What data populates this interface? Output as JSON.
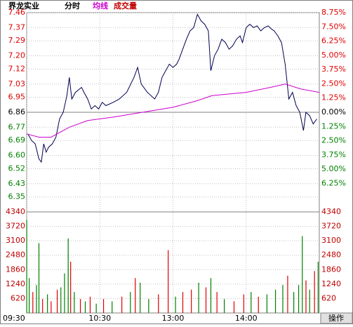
{
  "chart_data": [
    {
      "type": "line",
      "stock": "界龙实业",
      "mode": "分时",
      "avg_label": "均线",
      "volume_label": "成交量",
      "xlim": [
        0,
        240
      ],
      "xticks": [
        {
          "value": 0,
          "label": "09:30"
        },
        {
          "value": 60,
          "label": "10:30"
        },
        {
          "value": 120,
          "label": "13:00"
        },
        {
          "value": 180,
          "label": "14:00"
        }
      ],
      "ylim": [
        6.26,
        7.46
      ],
      "yticks": [
        7.46,
        7.37,
        7.29,
        {
          "value": 7.2,
          "label": "7.20"
        },
        7.12,
        7.03,
        6.95,
        6.86,
        6.77,
        6.69,
        {
          "value": 6.6,
          "label": "6.60"
        },
        6.52,
        6.43,
        6.35
      ],
      "y2lim": [
        -8.75,
        8.75
      ],
      "y2ticks": [
        {
          "value": 8.75,
          "label": "8.75%"
        },
        {
          "value": 7.5,
          "label": "7.50%"
        },
        {
          "value": 6.25,
          "label": "6.25%"
        },
        {
          "value": 5,
          "label": "5.00%"
        },
        {
          "value": 3.75,
          "label": "3.75%"
        },
        {
          "value": 2.5,
          "label": "2.50%"
        },
        {
          "value": 1.25,
          "label": "1.25%"
        },
        {
          "value": 0,
          "label": "0.00%"
        },
        {
          "value": -1.25,
          "label": "1.25%"
        },
        {
          "value": -2.5,
          "label": "2.50%"
        },
        {
          "value": -3.75,
          "label": "3.75%"
        },
        {
          "value": -5,
          "label": "5.00%"
        },
        {
          "value": -6.25,
          "label": "6.25%"
        }
      ],
      "up_color": "#e00000",
      "down_color": "#008000",
      "flat_color": "#000000",
      "series": [
        {
          "name": "分时",
          "color": "#000050",
          "x": [
            1,
            4,
            7,
            10,
            12,
            14,
            16,
            18,
            21,
            24,
            27,
            30,
            33,
            35,
            37,
            40,
            45,
            47,
            50,
            53,
            56,
            59,
            62,
            65,
            71,
            76,
            82,
            88,
            91,
            94,
            99,
            105,
            108,
            111,
            114,
            117,
            120,
            123,
            125,
            128,
            131,
            134,
            137,
            140,
            143,
            146,
            149,
            151,
            154,
            157,
            160,
            163,
            166,
            169,
            172,
            175,
            177,
            180,
            183,
            186,
            189,
            192,
            195,
            198,
            201,
            203,
            206,
            209,
            212,
            215,
            218,
            221,
            224,
            227,
            229,
            232,
            235,
            238
          ],
          "values": [
            6.73,
            6.69,
            6.67,
            6.58,
            6.56,
            6.67,
            6.62,
            6.65,
            6.67,
            6.71,
            6.82,
            6.86,
            6.96,
            7.07,
            6.94,
            6.98,
            7.01,
            6.98,
            6.94,
            6.88,
            6.9,
            6.88,
            6.92,
            6.9,
            6.92,
            6.94,
            6.98,
            7.07,
            7.13,
            7.03,
            6.98,
            6.94,
            6.98,
            7.07,
            7.11,
            7.15,
            7.13,
            7.15,
            7.18,
            7.24,
            7.3,
            7.35,
            7.37,
            7.45,
            7.41,
            7.39,
            7.35,
            7.11,
            7.2,
            7.24,
            7.3,
            7.28,
            7.24,
            7.26,
            7.3,
            7.32,
            7.28,
            7.37,
            7.39,
            7.37,
            7.38,
            7.35,
            7.37,
            7.38,
            7.36,
            7.35,
            7.32,
            7.28,
            7.15,
            6.94,
            6.98,
            6.9,
            6.86,
            6.75,
            6.86,
            6.84,
            6.79,
            6.82
          ]
        },
        {
          "name": "均线",
          "color": "#cc00cc",
          "x": [
            0,
            10,
            20,
            35,
            50,
            70,
            95,
            120,
            140,
            152,
            180,
            200,
            212,
            225,
            240
          ],
          "values": [
            6.73,
            6.71,
            6.71,
            6.77,
            6.81,
            6.83,
            6.86,
            6.89,
            6.93,
            6.96,
            6.98,
            7.01,
            7.03,
            7.0,
            6.98
          ]
        }
      ]
    },
    {
      "type": "bar",
      "xlim": [
        0,
        240
      ],
      "ylim": [
        0,
        4340
      ],
      "yticks": [
        4340,
        3720,
        3100,
        2480,
        1860,
        1240,
        620
      ],
      "tick_color": "#c00000",
      "x": [
        0,
        2,
        5,
        8,
        10,
        13,
        17,
        20,
        25,
        28,
        31,
        34,
        36,
        39,
        44,
        48,
        52,
        57,
        63,
        70,
        78,
        85,
        89,
        93,
        100,
        108,
        116,
        122,
        128,
        135,
        141,
        147,
        151,
        156,
        162,
        170,
        178,
        184,
        190,
        197,
        204,
        210,
        214,
        219,
        223,
        226,
        229,
        232,
        236,
        239
      ],
      "values": [
        4000,
        1500,
        900,
        1200,
        3000,
        600,
        800,
        500,
        1000,
        1100,
        1700,
        3200,
        2200,
        900,
        600,
        500,
        700,
        400,
        600,
        500,
        700,
        900,
        1500,
        1300,
        600,
        800,
        2700,
        700,
        900,
        1000,
        1300,
        1100,
        1500,
        900,
        600,
        500,
        800,
        900,
        700,
        800,
        1000,
        1200,
        1600,
        900,
        1200,
        3300,
        1400,
        1000,
        1800,
        2200
      ],
      "colors": [
        "#008000",
        "#008000",
        "#e00000",
        "#008000",
        "#008000",
        "#e00000",
        "#008000",
        "#e00000",
        "#e00000",
        "#008000",
        "#008000",
        "#008000",
        "#e00000",
        "#008000",
        "#e00000",
        "#008000",
        "#e00000",
        "#008000",
        "#e00000",
        "#008000",
        "#e00000",
        "#008000",
        "#e00000",
        "#008000",
        "#008000",
        "#e00000",
        "#e00000",
        "#008000",
        "#e00000",
        "#e00000",
        "#008000",
        "#e00000",
        "#008000",
        "#e00000",
        "#008000",
        "#e00000",
        "#e00000",
        "#008000",
        "#e00000",
        "#008000",
        "#008000",
        "#008000",
        "#e00000",
        "#008000",
        "#008000",
        "#008000",
        "#e00000",
        "#008000",
        "#e00000",
        "#008000"
      ]
    }
  ],
  "button": "操作"
}
